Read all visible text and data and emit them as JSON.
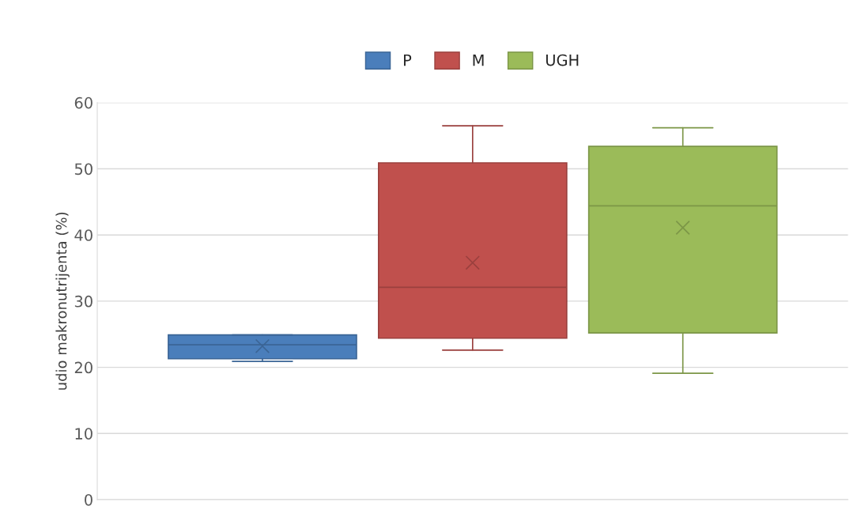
{
  "chart_data": {
    "type": "box",
    "ylabel": "udio makronutrijenta (%)",
    "categories": [
      null
    ],
    "ylim": [
      0,
      60
    ],
    "yticks": [
      0,
      10,
      20,
      30,
      40,
      50,
      60
    ],
    "grid": "y",
    "legend": "top",
    "tick_labels": "y",
    "marker": "cross",
    "series": [
      {
        "name": "P",
        "color": "#4a7ebb",
        "boxes": [
          {
            "low": 20.9,
            "q1": 21.3,
            "median": 23.4,
            "q3": 24.9,
            "high": 24.9,
            "mean": 23.2
          }
        ]
      },
      {
        "name": "M",
        "color": "#c0504d",
        "boxes": [
          {
            "low": 22.6,
            "q1": 24.4,
            "median": 32.1,
            "q3": 50.9,
            "high": 56.5,
            "mean": 35.8
          }
        ]
      },
      {
        "name": "UGH",
        "color": "#9bbb59",
        "boxes": [
          {
            "low": 19.1,
            "q1": 25.2,
            "median": 44.4,
            "q3": 53.4,
            "high": 56.2,
            "mean": 41.1
          }
        ]
      }
    ]
  }
}
